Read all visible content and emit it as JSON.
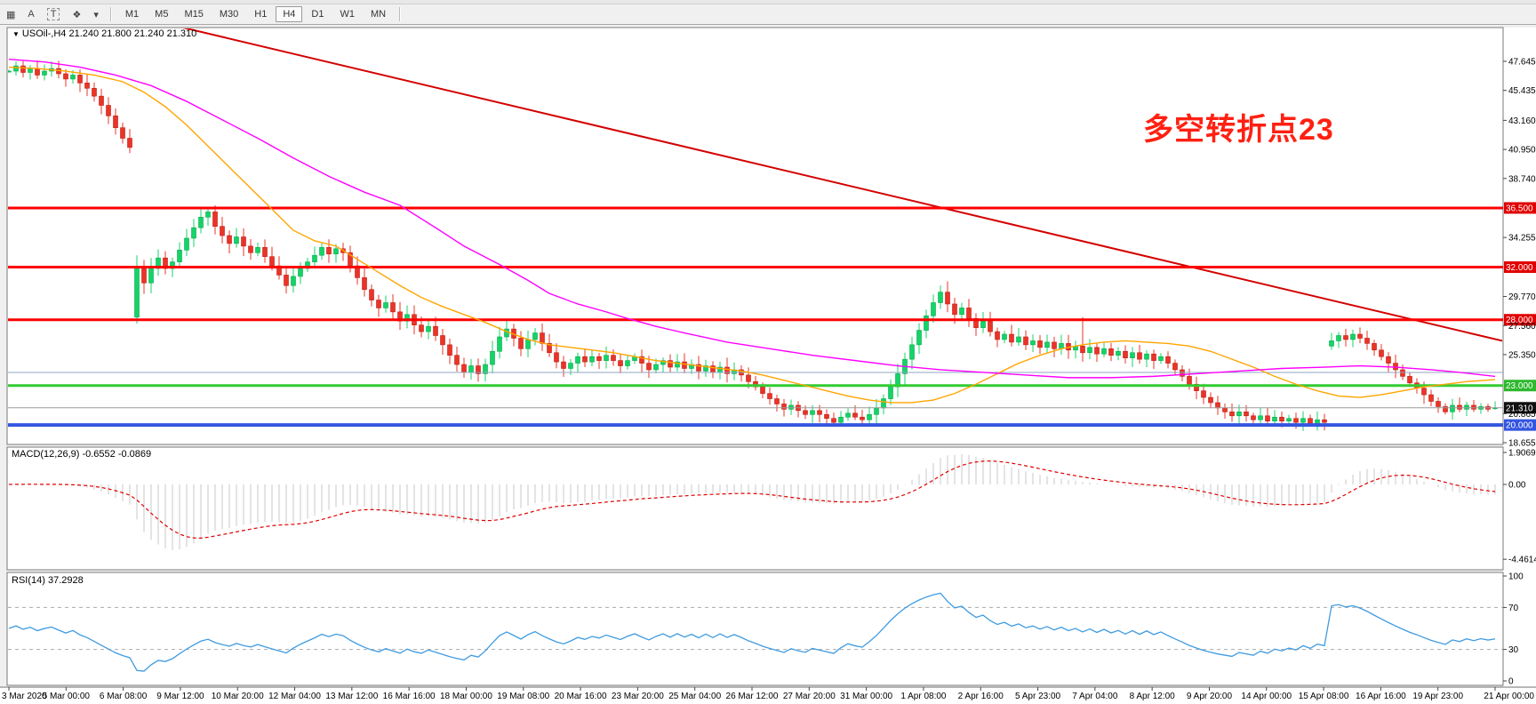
{
  "toolbar": {
    "tools": [
      {
        "name": "grid-snap-tool-icon",
        "glyph": "▦"
      },
      {
        "name": "text-label-tool-icon",
        "glyph": "A"
      },
      {
        "name": "text-frame-tool-icon",
        "glyph": "T"
      },
      {
        "name": "arrow-style-tool-icon",
        "glyph": "❖"
      },
      {
        "name": "dropdown-caret-icon",
        "glyph": "▾"
      }
    ],
    "timeframes": [
      {
        "label": "M1",
        "active": false
      },
      {
        "label": "M5",
        "active": false
      },
      {
        "label": "M15",
        "active": false
      },
      {
        "label": "M30",
        "active": false
      },
      {
        "label": "H1",
        "active": false
      },
      {
        "label": "H4",
        "active": true
      },
      {
        "label": "D1",
        "active": false
      },
      {
        "label": "W1",
        "active": false
      },
      {
        "label": "MN",
        "active": false
      }
    ]
  },
  "chart": {
    "title": "USOil-,H4  21.240 21.800 21.240 21.310",
    "symbol": "USOil-",
    "timeframe": "H4",
    "ohlc_display": {
      "open": "21.240",
      "high": "21.800",
      "low": "21.240",
      "close": "21.310"
    },
    "annotation": {
      "text": "多空转折点23",
      "color": "#FF2012"
    }
  },
  "chart_data": {
    "type": "candlestick",
    "title": "USOil- H4",
    "ylim": [
      18.4,
      48.0
    ],
    "price_axis_ticks": [
      "47.645",
      "45.435",
      "43.160",
      "40.950",
      "38.740",
      "34.255",
      "29.770",
      "27.560",
      "25.350",
      "20.865",
      "18.655"
    ],
    "time_axis_labels": [
      "3 Mar 2020",
      "5 Mar 00:00",
      "6 Mar 08:00",
      "9 Mar 12:00",
      "10 Mar 20:00",
      "12 Mar 04:00",
      "13 Mar 12:00",
      "16 Mar 16:00",
      "18 Mar 00:00",
      "19 Mar 08:00",
      "20 Mar 16:00",
      "23 Mar 20:00",
      "25 Mar 04:00",
      "26 Mar 12:00",
      "27 Mar 20:00",
      "31 Mar 00:00",
      "1 Apr 08:00",
      "2 Apr 16:00",
      "5 Apr 23:00",
      "7 Apr 04:00",
      "8 Apr 12:00",
      "9 Apr 20:00",
      "14 Apr 00:00",
      "15 Apr 08:00",
      "16 Apr 16:00",
      "19 Apr 23:00",
      "21 Apr 00:00"
    ],
    "candles": {
      "closes": [
        46.9,
        47.3,
        46.8,
        47.1,
        46.6,
        46.9,
        47.1,
        46.7,
        46.3,
        46.6,
        46.0,
        45.6,
        45.0,
        44.3,
        43.5,
        42.6,
        41.8,
        41.1,
        31.9,
        30.8,
        31.9,
        32.7,
        31.9,
        32.4,
        33.3,
        34.2,
        35.0,
        35.8,
        36.2,
        35.1,
        34.4,
        33.8,
        34.3,
        33.6,
        33.1,
        33.5,
        32.8,
        32.1,
        31.4,
        30.6,
        31.3,
        31.9,
        32.4,
        32.9,
        33.5,
        33.0,
        33.4,
        33.1,
        32.1,
        31.2,
        30.3,
        29.5,
        28.9,
        29.3,
        28.6,
        27.9,
        28.4,
        27.6,
        27.1,
        27.5,
        26.8,
        26.1,
        25.3,
        24.6,
        24.0,
        24.5,
        23.9,
        24.6,
        25.6,
        26.7,
        27.3,
        26.6,
        25.8,
        26.5,
        27.0,
        26.2,
        25.5,
        24.8,
        24.3,
        24.7,
        25.2,
        24.8,
        25.2,
        24.9,
        25.3,
        24.9,
        24.5,
        24.9,
        25.2,
        24.7,
        24.2,
        24.6,
        24.9,
        24.4,
        24.8,
        24.3,
        24.6,
        24.1,
        24.5,
        24.0,
        24.4,
        23.9,
        24.2,
        23.8,
        23.3,
        22.9,
        22.4,
        22.0,
        21.6,
        21.2,
        21.5,
        21.1,
        20.8,
        21.1,
        20.8,
        20.5,
        20.2,
        20.6,
        20.9,
        20.6,
        20.4,
        20.8,
        21.3,
        22.0,
        22.9,
        23.9,
        25.0,
        26.1,
        27.2,
        28.3,
        29.3,
        30.1,
        29.2,
        28.4,
        28.9,
        28.1,
        27.4,
        27.9,
        27.1,
        26.5,
        26.9,
        26.3,
        26.7,
        26.1,
        26.4,
        25.9,
        26.3,
        25.8,
        26.2,
        25.7,
        26.0,
        25.5,
        25.9,
        25.4,
        25.8,
        25.3,
        25.6,
        25.1,
        25.5,
        25.0,
        25.4,
        24.9,
        25.2,
        24.7,
        24.2,
        23.7,
        23.1,
        22.6,
        22.1,
        21.7,
        21.3,
        21.0,
        20.7,
        21.0,
        20.7,
        20.4,
        20.7,
        20.3,
        20.6,
        20.3,
        20.5,
        20.2,
        20.5,
        20.1,
        20.4,
        20.2,
        26.4,
        26.8,
        26.5,
        26.9,
        26.6,
        26.2,
        25.7,
        25.2,
        24.7,
        24.2,
        23.7,
        23.2,
        22.8,
        22.3,
        21.8,
        21.4,
        21.0,
        21.5,
        21.2,
        21.5,
        21.2,
        21.4,
        21.2,
        21.31
      ],
      "overrides": [
        {
          "bar": 18,
          "open": 28.2,
          "low": 27.7,
          "high": 32.9
        },
        {
          "bar": 28,
          "high": 36.45
        },
        {
          "bar": 39,
          "low": 30.0
        },
        {
          "bar": 44,
          "high": 33.9
        },
        {
          "bar": 64,
          "low": 23.6
        },
        {
          "bar": 66,
          "low": 23.3
        },
        {
          "bar": 131,
          "high": 30.6
        },
        {
          "bar": 151,
          "high": 28.2
        },
        {
          "bar": 183,
          "low": 19.9
        },
        {
          "bar": 186,
          "open": 26.0
        },
        {
          "bar": 202,
          "low": 20.8
        },
        {
          "bar": 209,
          "open": 21.24,
          "high": 21.8,
          "low": 21.15
        }
      ]
    },
    "moving_averages": [
      {
        "name": "MA fast",
        "color": "#FFA500",
        "points": [
          [
            0,
            47.2
          ],
          [
            4,
            47.1
          ],
          [
            8,
            46.9
          ],
          [
            12,
            46.6
          ],
          [
            16,
            46.1
          ],
          [
            19,
            45.3
          ],
          [
            22,
            44.2
          ],
          [
            25,
            42.8
          ],
          [
            28,
            41.2
          ],
          [
            31,
            39.6
          ],
          [
            34,
            38.0
          ],
          [
            37,
            36.4
          ],
          [
            40,
            34.8
          ],
          [
            43,
            34.0
          ],
          [
            46,
            33.6
          ],
          [
            49,
            32.6
          ],
          [
            52,
            31.6
          ],
          [
            55,
            30.6
          ],
          [
            58,
            29.7
          ],
          [
            61,
            29.0
          ],
          [
            64,
            28.4
          ],
          [
            67,
            27.8
          ],
          [
            70,
            27.1
          ],
          [
            73,
            26.5
          ],
          [
            76,
            26.1
          ],
          [
            79,
            25.9
          ],
          [
            82,
            25.7
          ],
          [
            85,
            25.5
          ],
          [
            88,
            25.2
          ],
          [
            91,
            24.9
          ],
          [
            94,
            24.7
          ],
          [
            97,
            24.5
          ],
          [
            100,
            24.3
          ],
          [
            103,
            24.1
          ],
          [
            106,
            23.8
          ],
          [
            109,
            23.4
          ],
          [
            112,
            23.0
          ],
          [
            115,
            22.6
          ],
          [
            118,
            22.2
          ],
          [
            121,
            21.9
          ],
          [
            124,
            21.7
          ],
          [
            127,
            21.7
          ],
          [
            130,
            21.9
          ],
          [
            133,
            22.4
          ],
          [
            136,
            23.1
          ],
          [
            139,
            23.9
          ],
          [
            142,
            24.7
          ],
          [
            145,
            25.3
          ],
          [
            148,
            25.8
          ],
          [
            151,
            26.1
          ],
          [
            154,
            26.3
          ],
          [
            157,
            26.4
          ],
          [
            160,
            26.3
          ],
          [
            163,
            26.2
          ],
          [
            166,
            26.0
          ],
          [
            169,
            25.6
          ],
          [
            172,
            25.0
          ],
          [
            175,
            24.4
          ],
          [
            178,
            23.7
          ],
          [
            181,
            23.1
          ],
          [
            184,
            22.6
          ],
          [
            187,
            22.2
          ],
          [
            190,
            22.1
          ],
          [
            193,
            22.3
          ],
          [
            196,
            22.6
          ],
          [
            199,
            22.9
          ],
          [
            202,
            23.1
          ],
          [
            205,
            23.3
          ],
          [
            209,
            23.45
          ]
        ]
      },
      {
        "name": "MA slow",
        "color": "#FF00FF",
        "points": [
          [
            0,
            47.8
          ],
          [
            5,
            47.6
          ],
          [
            10,
            47.2
          ],
          [
            15,
            46.6
          ],
          [
            20,
            45.8
          ],
          [
            25,
            44.6
          ],
          [
            30,
            43.2
          ],
          [
            35,
            41.8
          ],
          [
            40,
            40.3
          ],
          [
            45,
            38.9
          ],
          [
            50,
            37.7
          ],
          [
            55,
            36.7
          ],
          [
            60,
            35.0
          ],
          [
            64,
            33.6
          ],
          [
            69,
            32.2
          ],
          [
            73,
            31.0
          ],
          [
            76,
            30.0
          ],
          [
            80,
            29.2
          ],
          [
            84,
            28.6
          ],
          [
            87,
            28.1
          ],
          [
            91,
            27.5
          ],
          [
            95,
            27.0
          ],
          [
            101,
            26.3
          ],
          [
            107,
            25.8
          ],
          [
            113,
            25.3
          ],
          [
            119,
            24.9
          ],
          [
            125,
            24.5
          ],
          [
            131,
            24.2
          ],
          [
            137,
            24.0
          ],
          [
            143,
            23.8
          ],
          [
            149,
            23.6
          ],
          [
            155,
            23.6
          ],
          [
            161,
            23.7
          ],
          [
            167,
            23.9
          ],
          [
            173,
            24.1
          ],
          [
            179,
            24.3
          ],
          [
            185,
            24.4
          ],
          [
            190,
            24.5
          ],
          [
            195,
            24.4
          ],
          [
            200,
            24.2
          ],
          [
            204,
            24.0
          ],
          [
            209,
            23.7
          ]
        ]
      }
    ],
    "hlines": [
      {
        "price": 36.5,
        "label": "36.500",
        "color": "#FF0000",
        "width": 3,
        "label_bg": "#E00000"
      },
      {
        "price": 32.0,
        "label": "32.000",
        "color": "#FF0000",
        "width": 3,
        "label_bg": "#E00000"
      },
      {
        "price": 28.0,
        "label": "28.000",
        "color": "#FF0000",
        "width": 3,
        "label_bg": "#E00000"
      },
      {
        "price": 24.0,
        "label": null,
        "color": "#8FA4C4",
        "width": 1,
        "label_bg": null
      },
      {
        "price": 23.0,
        "label": "23.000",
        "color": "#33CC33",
        "width": 3,
        "label_bg": "#2DB82D"
      },
      {
        "price": 21.31,
        "label": "21.310",
        "color": "#9A9A9A",
        "width": 1,
        "label_bg": "#101010"
      },
      {
        "price": 20.0,
        "label": "20.000",
        "color": "#3355E0",
        "width": 4,
        "label_bg": "#3355E0"
      }
    ],
    "trendlines": [
      {
        "from_bar": 23,
        "from_price": 50.4,
        "to_bar": 210,
        "to_price": 26.4,
        "color": "#D40000",
        "width": 2
      }
    ],
    "indicators": [
      {
        "name": "MACD",
        "params": [
          12,
          26,
          9
        ],
        "label": "MACD(12,26,9) -0.6552 -0.0869",
        "main_value": "-0.6552",
        "signal_value": "-0.0869",
        "axis_labels": [
          {
            "text": "1.9069",
            "value": 1.9069
          },
          {
            "text": "0.00",
            "value": 0
          },
          {
            "text": "-4.4614",
            "value": -4.4614
          }
        ]
      },
      {
        "name": "RSI",
        "params": [
          14
        ],
        "label": "RSI(14) 37.2928",
        "value": "37.2928",
        "axis_labels": [
          {
            "text": "100",
            "value": 100
          },
          {
            "text": "70",
            "value": 70
          },
          {
            "text": "30",
            "value": 30
          },
          {
            "text": "0",
            "value": 0
          }
        ],
        "levels": [
          70,
          30
        ]
      }
    ],
    "style": {
      "bull": "#14D467",
      "bull_border": "#0AA84D",
      "bear": "#EA3428",
      "bear_border": "#BF1D12",
      "macd_hist": "#C9C9C9",
      "macd_signal": "#E00000",
      "rsi_line": "#3F9BE0",
      "level_dash": "#ABABAB",
      "panel_border": "#7A7A7A"
    }
  }
}
